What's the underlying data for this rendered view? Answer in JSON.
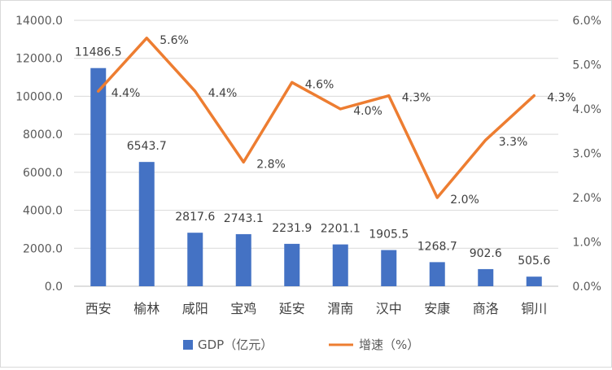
{
  "chart_data": {
    "type": "bar+line",
    "categories": [
      "西安",
      "榆林",
      "咸阳",
      "宝鸡",
      "延安",
      "渭南",
      "汉中",
      "安康",
      "商洛",
      "铜川"
    ],
    "series": [
      {
        "name": "GDP（亿元）",
        "type": "bar",
        "axis": "left",
        "color": "#4472c4",
        "values": [
          11486.5,
          6543.7,
          2817.6,
          2743.1,
          2231.9,
          2201.1,
          1905.5,
          1268.7,
          902.6,
          505.6
        ],
        "labels": [
          "11486.5",
          "6543.7",
          "2817.6",
          "2743.1",
          "2231.9",
          "2201.1",
          "1905.5",
          "1268.7",
          "902.6",
          "505.6"
        ]
      },
      {
        "name": "增速（%）",
        "type": "line",
        "axis": "right",
        "color": "#ed7d31",
        "values": [
          4.4,
          5.6,
          4.4,
          2.8,
          4.6,
          4.0,
          4.3,
          2.0,
          3.3,
          4.3
        ],
        "labels": [
          "4.4%",
          "5.6%",
          "4.4%",
          "2.8%",
          "4.6%",
          "4.0%",
          "4.3%",
          "2.0%",
          "3.3%",
          "4.3%"
        ]
      }
    ],
    "y_left": {
      "range": [
        0,
        14000
      ],
      "ticks": [
        "0.0",
        "2000.0",
        "4000.0",
        "6000.0",
        "8000.0",
        "10000.0",
        "12000.0",
        "14000.0"
      ]
    },
    "y_right": {
      "range": [
        0,
        6
      ],
      "ticks": [
        "0.0%",
        "1.0%",
        "2.0%",
        "3.0%",
        "4.0%",
        "5.0%",
        "6.0%"
      ]
    },
    "grid": true,
    "legend_position": "bottom"
  }
}
